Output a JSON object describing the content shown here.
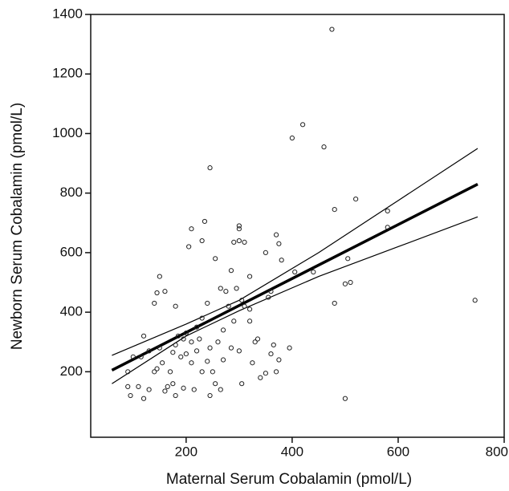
{
  "chart_data": {
    "type": "scatter",
    "x_label": "Maternal Serum Cobalamin (pmol/L)",
    "y_label": "Newborn Serum Cobalamin (pmol/L)",
    "xlim": [
      20,
      800
    ],
    "ylim": [
      -20,
      1400
    ],
    "xticks": [
      200,
      400,
      600,
      800
    ],
    "yticks": [
      200,
      400,
      600,
      800,
      1000,
      1200,
      1400
    ],
    "color": "#222",
    "x": [
      475,
      420,
      400,
      460,
      245,
      520,
      580,
      480,
      580,
      235,
      210,
      300,
      300,
      310,
      300,
      370,
      375,
      230,
      255,
      290,
      205,
      440,
      505,
      405,
      350,
      380,
      480,
      500,
      510,
      745,
      395,
      500,
      150,
      145,
      160,
      120,
      100,
      90,
      95,
      110,
      120,
      130,
      140,
      145,
      155,
      160,
      165,
      170,
      175,
      180,
      185,
      190,
      195,
      200,
      210,
      220,
      220,
      225,
      230,
      240,
      245,
      250,
      255,
      260,
      265,
      270,
      275,
      280,
      285,
      290,
      295,
      300,
      305,
      310,
      320,
      320,
      325,
      330,
      335,
      340,
      350,
      360,
      365,
      370,
      375,
      355,
      360,
      320,
      270,
      240,
      230,
      180,
      175,
      140,
      130,
      215,
      245,
      265,
      285,
      305,
      150,
      200,
      210,
      115,
      90,
      180,
      195
    ],
    "values": [
      1350,
      1030,
      985,
      955,
      885,
      780,
      740,
      745,
      685,
      705,
      680,
      690,
      680,
      635,
      640,
      660,
      630,
      640,
      580,
      635,
      620,
      535,
      580,
      535,
      600,
      575,
      430,
      495,
      500,
      440,
      280,
      110,
      520,
      465,
      470,
      320,
      250,
      150,
      120,
      150,
      110,
      140,
      200,
      210,
      230,
      135,
      150,
      200,
      265,
      290,
      320,
      250,
      310,
      330,
      300,
      350,
      270,
      310,
      380,
      430,
      280,
      200,
      160,
      300,
      480,
      340,
      470,
      420,
      540,
      370,
      480,
      270,
      440,
      420,
      410,
      520,
      230,
      300,
      310,
      180,
      195,
      260,
      290,
      200,
      240,
      450,
      470,
      370,
      240,
      235,
      200,
      420,
      160,
      430,
      270,
      140,
      120,
      140,
      280,
      160,
      280,
      260,
      230,
      250,
      200,
      120,
      145
    ],
    "lines": [
      {
        "name": "fit",
        "x": [
          60,
          750
        ],
        "values": [
          205,
          830
        ]
      },
      {
        "name": "upper",
        "x": [
          60,
          200,
          300,
          450,
          600,
          750
        ],
        "values": [
          255,
          360,
          440,
          600,
          775,
          950
        ]
      },
      {
        "name": "lower",
        "x": [
          60,
          200,
          300,
          450,
          600,
          750
        ],
        "values": [
          160,
          320,
          405,
          520,
          620,
          720
        ]
      }
    ]
  }
}
